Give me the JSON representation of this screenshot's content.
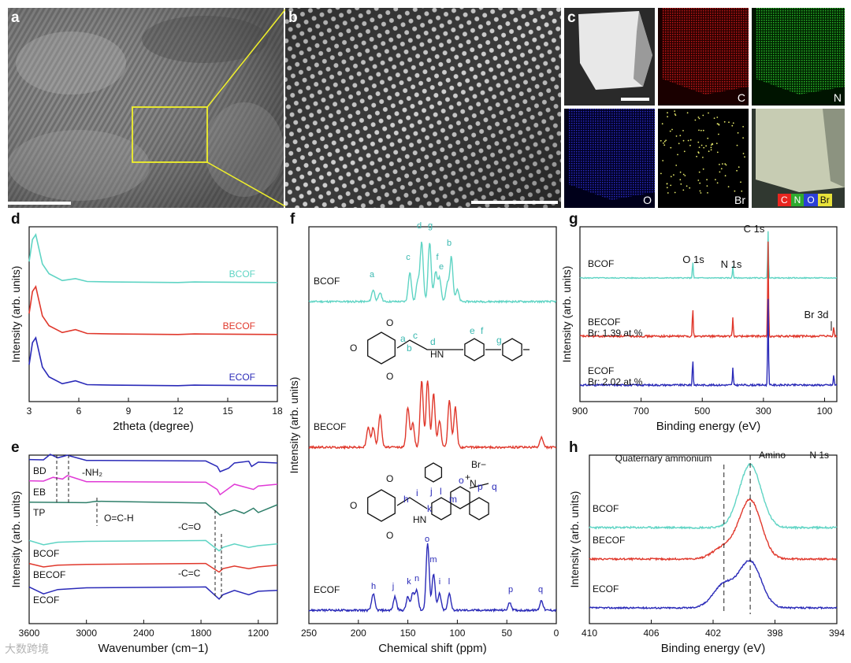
{
  "panels": {
    "a": {
      "label": "a"
    },
    "b": {
      "label": "b"
    },
    "c": {
      "label": "c",
      "tiles": [
        {
          "name": "haadf",
          "label": ""
        },
        {
          "name": "carbon",
          "label": "C",
          "color": "#ff2b2b"
        },
        {
          "name": "nitrogen",
          "label": "N",
          "color": "#2fcf2f"
        },
        {
          "name": "oxygen",
          "label": "O",
          "color": "#2b2bff"
        },
        {
          "name": "bromine",
          "label": "Br",
          "color": "#e8e85a"
        },
        {
          "name": "overlay",
          "label": ""
        }
      ],
      "legend": [
        {
          "label": "C",
          "color": "#e8261f"
        },
        {
          "label": "N",
          "color": "#2faa2f"
        },
        {
          "label": "O",
          "color": "#2b3fd6"
        },
        {
          "label": "Br",
          "color": "#e8e23a"
        }
      ]
    },
    "d": {
      "label": "d"
    },
    "e": {
      "label": "e"
    },
    "f": {
      "label": "f"
    },
    "g": {
      "label": "g"
    },
    "h": {
      "label": "h"
    }
  },
  "colors": {
    "BCOF": "#5fd4c4",
    "BECOF": "#e0382c",
    "ECOF": "#2a2ab8",
    "BD": "#2a2ab8",
    "EB": "#e03ad6",
    "TP": "#2f7f6a"
  },
  "chart_data": [
    {
      "panel": "d",
      "type": "line",
      "xlabel": "2theta (degree)",
      "ylabel": "Intensity (arb. units)",
      "xlim": [
        3,
        18
      ],
      "xticks": [
        "3",
        "6",
        "9",
        "12",
        "15",
        "18"
      ],
      "series": [
        {
          "name": "BCOF",
          "x": [
            3,
            3.2,
            3.4,
            3.6,
            3.8,
            4.2,
            5,
            5.8,
            6.5,
            8,
            12,
            13,
            18
          ],
          "y": [
            0.45,
            0.9,
            1.0,
            0.7,
            0.4,
            0.2,
            0.06,
            0.1,
            0.04,
            0.03,
            0.02,
            0.03,
            0.02
          ]
        },
        {
          "name": "BECOF",
          "x": [
            3,
            3.2,
            3.4,
            3.6,
            3.8,
            4.2,
            5,
            5.8,
            6.5,
            8,
            12,
            13,
            18
          ],
          "y": [
            0.45,
            0.9,
            1.0,
            0.7,
            0.4,
            0.2,
            0.06,
            0.12,
            0.04,
            0.03,
            0.02,
            0.03,
            0.02
          ]
        },
        {
          "name": "ECOF",
          "x": [
            3,
            3.2,
            3.4,
            3.6,
            3.8,
            4.2,
            5,
            5.8,
            6.5,
            8,
            12,
            13,
            18
          ],
          "y": [
            0.45,
            0.9,
            1.0,
            0.7,
            0.4,
            0.2,
            0.06,
            0.12,
            0.04,
            0.03,
            0.02,
            0.03,
            0.02
          ]
        }
      ]
    },
    {
      "panel": "e",
      "type": "line",
      "xlabel": "Wavenumber (cm−1)",
      "ylabel": "Intensity (arb. units)",
      "xlim": [
        3600,
        1000
      ],
      "xticks": [
        "3600",
        "3000",
        "2400",
        "1800",
        "1200"
      ],
      "series": [
        {
          "name": "BD",
          "x": [
            3600,
            3450,
            3380,
            3300,
            3200,
            3000,
            1750,
            1630,
            1600,
            1510,
            1450,
            1300,
            1270,
            1200,
            1000
          ],
          "y": [
            0.2,
            0.18,
            0.5,
            0.3,
            0.45,
            0.15,
            0.12,
            -0.2,
            -0.5,
            -0.3,
            0,
            0.1,
            -0.2,
            0.05,
            0
          ]
        },
        {
          "name": "EB",
          "x": [
            3600,
            3450,
            3350,
            3250,
            3200,
            3000,
            1750,
            1630,
            1600,
            1500,
            1450,
            1250,
            1200,
            1000
          ],
          "y": [
            0.2,
            0.18,
            0.4,
            0.3,
            0.5,
            0.15,
            0.12,
            -0.3,
            -0.6,
            -0.2,
            0,
            -0.3,
            -0.1,
            0
          ]
        },
        {
          "name": "TP",
          "x": [
            3600,
            3000,
            2900,
            1750,
            1640,
            1600,
            1450,
            1350,
            1250,
            1200,
            1000
          ],
          "y": [
            0.15,
            0.12,
            0.2,
            0.1,
            -0.4,
            -0.6,
            -0.3,
            -0.5,
            -0.2,
            -0.45,
            0
          ]
        },
        {
          "name": "BCOF",
          "x": [
            3600,
            3450,
            3300,
            3000,
            1750,
            1610,
            1570,
            1450,
            1300,
            1200,
            1000
          ],
          "y": [
            0.3,
            0.05,
            0.2,
            0.25,
            0.3,
            -0.3,
            -0.1,
            0.1,
            -0.1,
            0.0,
            0.1
          ]
        },
        {
          "name": "BECOF",
          "x": [
            3600,
            3450,
            3300,
            3000,
            1750,
            1610,
            1570,
            1450,
            1300,
            1200,
            1000
          ],
          "y": [
            0.2,
            0.0,
            0.1,
            0.15,
            0.2,
            -0.3,
            -0.1,
            0.05,
            -0.1,
            0.0,
            0.1
          ]
        },
        {
          "name": "ECOF",
          "x": [
            3600,
            3450,
            3300,
            3000,
            1750,
            1610,
            1570,
            1450,
            1300,
            1200,
            1000
          ],
          "y": [
            0.3,
            -0.1,
            0.15,
            0.25,
            0.3,
            -0.4,
            -0.15,
            0.1,
            -0.15,
            0.05,
            0.1
          ]
        }
      ],
      "annotations": [
        "-NH₂",
        "O=C-H",
        "-C=O",
        "-C=C"
      ]
    },
    {
      "panel": "f",
      "type": "line",
      "xlabel": "Chemical shift (ppm)",
      "ylabel": "Intensity (arb. units)",
      "xlim": [
        250,
        0
      ],
      "xticks": [
        "250",
        "200",
        "150",
        "100",
        "50",
        "0"
      ],
      "series": [
        {
          "name": "BCOF",
          "peaks": [
            [
              185,
              0.2
            ],
            [
              178,
              0.15
            ],
            [
              148,
              0.5
            ],
            [
              140,
              0.35
            ],
            [
              136,
              1.0
            ],
            [
              128,
              1.0
            ],
            [
              122,
              0.5
            ],
            [
              118,
              0.4
            ],
            [
              110,
              0.3
            ],
            [
              106,
              0.75
            ],
            [
              100,
              0.2
            ]
          ],
          "peak_labels": [
            "a",
            "c",
            "d",
            "g",
            "f",
            "e",
            "b"
          ]
        },
        {
          "name": "BECOF",
          "peaks": [
            [
              190,
              0.3
            ],
            [
              185,
              0.3
            ],
            [
              178,
              0.5
            ],
            [
              150,
              0.6
            ],
            [
              145,
              0.35
            ],
            [
              136,
              1.0
            ],
            [
              130,
              1.0
            ],
            [
              124,
              0.8
            ],
            [
              118,
              0.4
            ],
            [
              108,
              0.7
            ],
            [
              102,
              0.6
            ],
            [
              15,
              0.15
            ]
          ]
        },
        {
          "name": "ECOF",
          "peaks": [
            [
              185,
              0.25
            ],
            [
              163,
              0.2
            ],
            [
              150,
              0.2
            ],
            [
              145,
              0.25
            ],
            [
              141,
              0.3
            ],
            [
              130,
              1.0
            ],
            [
              124,
              0.55
            ],
            [
              118,
              0.25
            ],
            [
              108,
              0.25
            ],
            [
              47,
              0.12
            ],
            [
              15,
              0.15
            ]
          ],
          "peak_labels": [
            "h",
            "j",
            "k",
            "n",
            "o",
            "m",
            "i",
            "l",
            "p",
            "q"
          ]
        }
      ]
    },
    {
      "panel": "g",
      "type": "line",
      "xlabel": "Binding energy (eV)",
      "ylabel": "Intensity (arb. units)",
      "xlim": [
        900,
        60
      ],
      "xticks": [
        "900",
        "800",
        "700",
        "600",
        "500",
        "400",
        "300",
        "200",
        "100"
      ],
      "series": [
        {
          "name": "BCOF",
          "peaks": [
            [
              531,
              0.35
            ],
            [
              400,
              0.25
            ],
            [
              284.8,
              1.0
            ]
          ]
        },
        {
          "name": "BECOF",
          "note": "Br: 1.39 at.%",
          "peaks": [
            [
              531,
              0.3
            ],
            [
              400,
              0.2
            ],
            [
              284.8,
              1.0
            ],
            [
              70,
              0.1
            ]
          ]
        },
        {
          "name": "ECOF",
          "note": "Br: 2.02 at.%",
          "peaks": [
            [
              531,
              0.3
            ],
            [
              400,
              0.2
            ],
            [
              284.8,
              1.0
            ],
            [
              70,
              0.12
            ]
          ]
        }
      ],
      "annotations": [
        "C 1s",
        "O 1s",
        "N 1s",
        "Br 3d"
      ]
    },
    {
      "panel": "h",
      "type": "line",
      "xlabel": "Binding energy (eV)",
      "ylabel": "Intensity (arb. units)",
      "title": "N 1s",
      "xlim": [
        410,
        394
      ],
      "xticks": [
        "410",
        "406",
        "402",
        "398",
        "394"
      ],
      "series": [
        {
          "name": "BCOF",
          "peaks": [
            [
              399.6,
              1.0
            ]
          ]
        },
        {
          "name": "BECOF",
          "peaks": [
            [
              401.3,
              0.2
            ],
            [
              399.6,
              1.0
            ]
          ]
        },
        {
          "name": "ECOF",
          "peaks": [
            [
              401.3,
              0.45
            ],
            [
              399.6,
              0.9
            ]
          ]
        }
      ],
      "annotations": [
        "Quaternary ammonium",
        "Amino"
      ]
    }
  ],
  "watermark": "大数跨境"
}
